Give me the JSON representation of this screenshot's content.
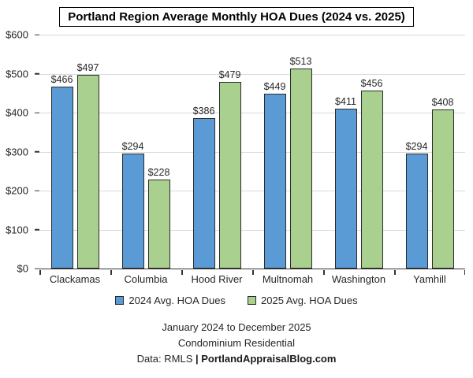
{
  "chart_data": {
    "type": "bar",
    "title": "Portland Region Average Monthly HOA Dues (2024 vs. 2025)",
    "categories": [
      "Clackamas",
      "Columbia",
      "Hood River",
      "Multnomah",
      "Washington",
      "Yamhill"
    ],
    "series": [
      {
        "name": "2024 Avg. HOA Dues",
        "color": "#5B9BD5",
        "values": [
          466,
          294,
          386,
          449,
          411,
          294
        ]
      },
      {
        "name": "2025 Avg. HOA Dues",
        "color": "#A9D08E",
        "values": [
          497,
          228,
          479,
          513,
          456,
          408
        ]
      }
    ],
    "data_label_prefix": "$",
    "ylim": [
      0,
      600
    ],
    "yticks": [
      {
        "value": 0,
        "label": "$0"
      },
      {
        "value": 100,
        "label": "$100"
      },
      {
        "value": 200,
        "label": "$200"
      },
      {
        "value": 300,
        "label": "$300"
      },
      {
        "value": 400,
        "label": "$400"
      },
      {
        "value": 500,
        "label": "$500"
      },
      {
        "value": 600,
        "label": "$600"
      }
    ],
    "grid": true,
    "legend_position": "bottom"
  },
  "footer": {
    "line1": "January 2024 to December 2025",
    "line2": "Condominium Residential",
    "line3_prefix": "Data: RMLS ",
    "line3_bold": "| PortlandAppraisalBlog.com"
  }
}
